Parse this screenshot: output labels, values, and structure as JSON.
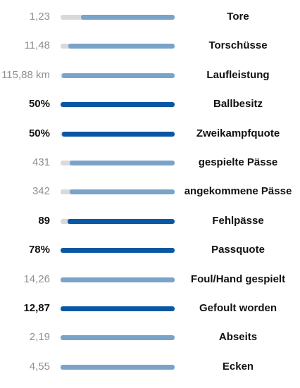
{
  "colors": {
    "track": "#d9d9d9",
    "fill_normal": "#7aa3c9",
    "fill_highlight": "#0a57a3",
    "value_muted": "#8f8f8f",
    "value_strong": "#111111"
  },
  "stats": [
    {
      "label": "Tore",
      "value": "1,23",
      "fill": 0.82,
      "highlight": false
    },
    {
      "label": "Torschüsse",
      "value": "11,48",
      "fill": 0.93,
      "highlight": false
    },
    {
      "label": "Laufleistung",
      "value": "115,88 km",
      "fill": 0.99,
      "highlight": false
    },
    {
      "label": "Ballbesitz",
      "value": "50%",
      "fill": 1.0,
      "highlight": true
    },
    {
      "label": "Zweikampfquote",
      "value": "50%",
      "fill": 0.99,
      "highlight": true
    },
    {
      "label": "gespielte Pässe",
      "value": "431",
      "fill": 0.92,
      "highlight": false
    },
    {
      "label": "angekommene Pässe",
      "value": "342",
      "fill": 0.92,
      "highlight": false
    },
    {
      "label": "Fehlpässe",
      "value": "89",
      "fill": 0.94,
      "highlight": true
    },
    {
      "label": "Passquote",
      "value": "78%",
      "fill": 1.0,
      "highlight": true
    },
    {
      "label": "Foul/Hand gespielt",
      "value": "14,26",
      "fill": 1.0,
      "highlight": false
    },
    {
      "label": "Gefoult worden",
      "value": "12,87",
      "fill": 1.0,
      "highlight": true
    },
    {
      "label": "Abseits",
      "value": "2,19",
      "fill": 1.0,
      "highlight": false
    },
    {
      "label": "Ecken",
      "value": "4,55",
      "fill": 1.0,
      "highlight": false
    }
  ]
}
